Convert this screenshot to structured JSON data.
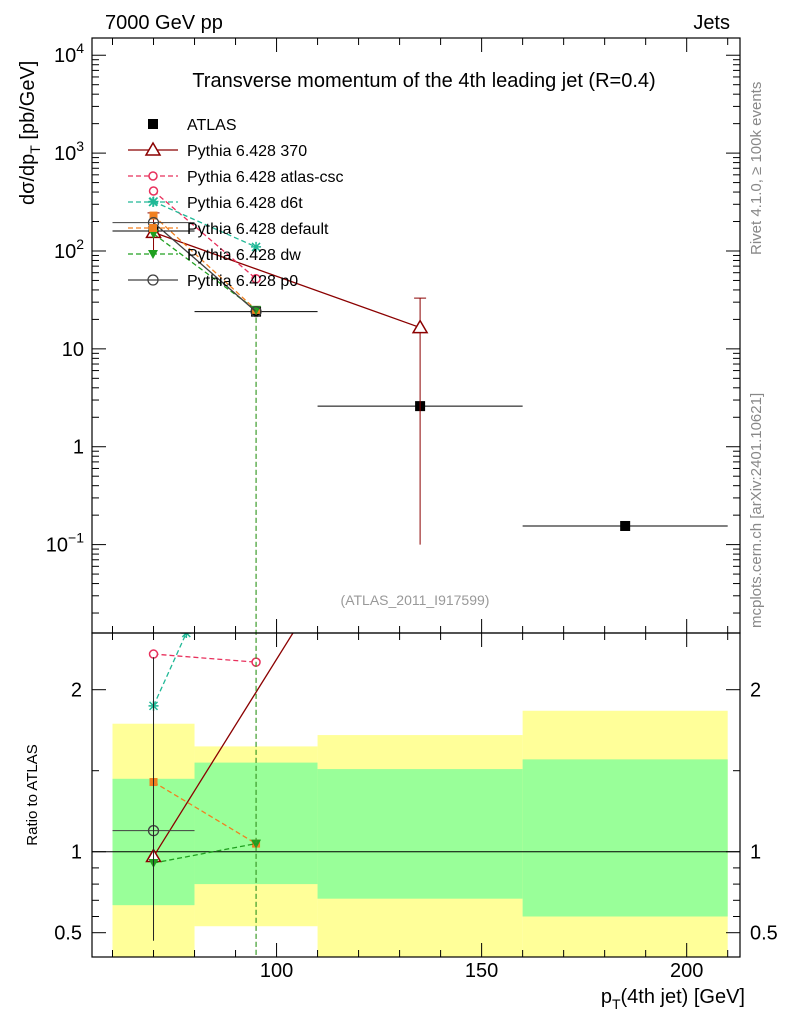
{
  "header": {
    "left_label": "7000 GeV pp",
    "right_label": "Jets",
    "side_label_top": "Rivet 4.1.0, ≥ 100k events",
    "side_label_bottom": "mcplots.cern.ch [arXiv:2401.10621]"
  },
  "chart_data": [
    {
      "type": "scatter",
      "panel": "main",
      "title": "Transverse momentum of the 4th leading jet (R=0.4)",
      "ylabel": "dσ/dp_T [pb/GeV]",
      "xlabel": "",
      "watermark": "(ATLAS_2011_I917599)",
      "xlim": [
        55,
        213
      ],
      "ylim": [
        0.0125,
        15000
      ],
      "yscale": "log",
      "grid": false,
      "legend_position": "top-left",
      "y_tick_labels": [
        "10^4",
        "10^3",
        "10^2",
        "10",
        "1",
        "10^-1"
      ],
      "colors": {
        "ATLAS": "#000000",
        "Pythia 6.428 370": "#8b0000",
        "Pythia 6.428 atlas-csc": "#e8305c",
        "Pythia 6.428 d6t": "#20b896",
        "Pythia 6.428 default": "#f08020",
        "Pythia 6.428 dw": "#20a020",
        "Pythia 6.428 p0": "#404040"
      },
      "series": [
        {
          "name": "ATLAS",
          "x": [
            70,
            95,
            135,
            185
          ],
          "y": [
            160,
            24,
            2.6,
            0.155
          ],
          "xerr": [
            10,
            15,
            25,
            25
          ]
        },
        {
          "name": "Pythia 6.428 370",
          "x": [
            70,
            135
          ],
          "y": [
            155,
            16.5
          ],
          "yerr_low": [
            60,
            16.4
          ],
          "yerr_high": [
            90,
            16.5
          ]
        },
        {
          "name": "Pythia 6.428 atlas-csc",
          "x": [
            70,
            95
          ],
          "y": [
            410,
            52
          ]
        },
        {
          "name": "Pythia 6.428 d6t",
          "x": [
            70,
            95
          ],
          "y": [
            320,
            110
          ]
        },
        {
          "name": "Pythia 6.428 default",
          "x": [
            70,
            95
          ],
          "y": [
            230,
            25
          ]
        },
        {
          "name": "Pythia 6.428 dw",
          "x": [
            70,
            95
          ],
          "y": [
            150,
            25
          ]
        },
        {
          "name": "Pythia 6.428 p0",
          "x": [
            70,
            95
          ],
          "y": [
            195,
            24
          ],
          "xerr": [
            10,
            0
          ]
        }
      ]
    },
    {
      "type": "scatter",
      "panel": "ratio",
      "ylabel": "Ratio to ATLAS",
      "xlabel": "p_T(4th jet) [GeV]",
      "xlim": [
        55,
        213
      ],
      "ylim": [
        0.35,
        2.35
      ],
      "y_tick_labels": [
        "0.5",
        "1",
        "2"
      ],
      "x_tick_labels": [
        "100",
        "150",
        "200"
      ],
      "reference_line": 1,
      "bands": [
        {
          "x_range": [
            60,
            80
          ],
          "inner": [
            0.67,
            1.45
          ],
          "outer": [
            0.35,
            1.79
          ]
        },
        {
          "x_range": [
            80,
            110
          ],
          "inner": [
            0.8,
            1.55
          ],
          "outer": [
            0.54,
            1.65
          ]
        },
        {
          "x_range": [
            110,
            160
          ],
          "inner": [
            0.71,
            1.51
          ],
          "outer": [
            0.35,
            1.72
          ]
        },
        {
          "x_range": [
            160,
            210
          ],
          "inner": [
            0.6,
            1.57
          ],
          "outer": [
            0.35,
            1.87
          ]
        }
      ],
      "series": [
        {
          "name": "Pythia 6.428 370",
          "x": [
            70,
            104
          ],
          "y": [
            0.97,
            2.35
          ]
        },
        {
          "name": "Pythia 6.428 atlas-csc",
          "x": [
            70,
            95
          ],
          "y": [
            2.22,
            2.17
          ]
        },
        {
          "name": "Pythia 6.428 d6t",
          "x": [
            70,
            78
          ],
          "y": [
            1.9,
            2.35
          ]
        },
        {
          "name": "Pythia 6.428 default",
          "x": [
            70,
            95
          ],
          "y": [
            1.43,
            1.05
          ]
        },
        {
          "name": "Pythia 6.428 dw",
          "x": [
            70,
            95
          ],
          "y": [
            0.93,
            1.05
          ]
        },
        {
          "name": "Pythia 6.428 p0",
          "x": [
            70
          ],
          "y": [
            1.13
          ],
          "xerr": [
            10
          ]
        }
      ]
    }
  ]
}
